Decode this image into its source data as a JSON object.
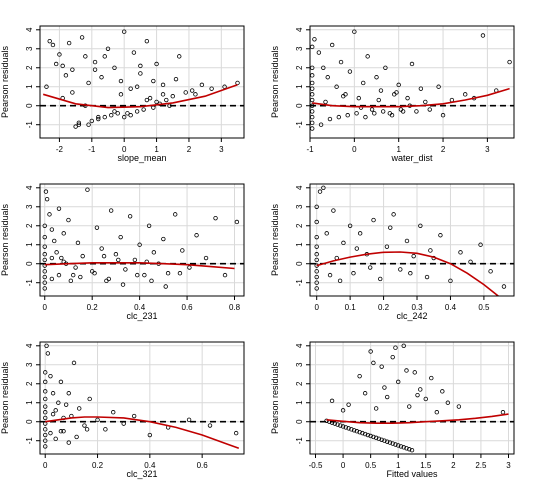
{
  "chart_data": [
    {
      "type": "scatter",
      "xlabel": "slope_mean",
      "ylabel": "Pearson residuals",
      "xlim": [
        -2.6,
        3.7
      ],
      "ylim": [
        -1.7,
        4.2
      ],
      "xticks": [
        -2,
        -1,
        0,
        1,
        2,
        3
      ],
      "yticks": [
        -1,
        0,
        1,
        2,
        3,
        4
      ],
      "grid": true,
      "reference_line": {
        "y": 0,
        "style": "dashed"
      },
      "smooth_curve": {
        "x": [
          -2.5,
          -1.5,
          -0.5,
          0.5,
          1.5,
          2.5,
          3.5
        ],
        "y": [
          0.6,
          0.1,
          -0.1,
          -0.05,
          0.15,
          0.5,
          1.1
        ]
      },
      "points": {
        "x": [
          -2.4,
          -2.2,
          -2.0,
          -1.9,
          -1.8,
          -1.7,
          -1.6,
          -1.5,
          -1.4,
          -1.3,
          -1.2,
          -1.1,
          -1.0,
          -0.9,
          -0.8,
          -0.7,
          -0.6,
          -0.5,
          -0.4,
          -0.3,
          -0.2,
          -0.1,
          0.0,
          0.1,
          0.2,
          0.3,
          0.4,
          0.5,
          0.6,
          0.7,
          0.8,
          0.9,
          1.0,
          1.1,
          1.2,
          1.3,
          1.5,
          1.7,
          1.9,
          2.1,
          2.4,
          2.7,
          3.1,
          3.5,
          -2.1,
          -1.6,
          -1.1,
          -0.6,
          -0.1,
          0.4,
          0.9,
          1.4,
          -1.9,
          -1.2,
          -0.8,
          -0.3,
          0.2,
          0.7,
          1.2,
          -2.3,
          -1.4,
          -0.9,
          0.0,
          0.5,
          1.0,
          1.6,
          2.2
        ],
        "y": [
          1.0,
          3.2,
          2.7,
          2.1,
          1.6,
          3.3,
          0.7,
          -1.1,
          -0.9,
          3.6,
          2.6,
          -1.0,
          -0.8,
          2.3,
          -0.7,
          1.5,
          -0.6,
          3.0,
          -0.5,
          2.0,
          -0.4,
          1.3,
          3.9,
          -0.4,
          0.9,
          2.8,
          -0.3,
          1.7,
          -0.2,
          3.4,
          0.4,
          -0.1,
          2.2,
          0.1,
          1.1,
          0.3,
          0.5,
          2.6,
          0.7,
          0.8,
          1.1,
          0.9,
          1.0,
          1.2,
          2.2,
          1.9,
          1.2,
          2.6,
          0.6,
          1.0,
          1.3,
          0.0,
          0.4,
          0.0,
          -0.6,
          -0.3,
          -0.5,
          0.3,
          0.6,
          3.4,
          -1.0,
          1.9,
          -0.6,
          2.1,
          0.2,
          1.4,
          0.6
        ]
      }
    },
    {
      "type": "scatter",
      "xlabel": "water_dist",
      "ylabel": "Pearson residuals",
      "xlim": [
        -1.0,
        3.6
      ],
      "ylim": [
        -1.7,
        4.2
      ],
      "xticks": [
        -1,
        0,
        1,
        2,
        3
      ],
      "yticks": [
        -1,
        0,
        1,
        2,
        3,
        4
      ],
      "grid": true,
      "reference_line": {
        "y": 0,
        "style": "dashed"
      },
      "smooth_curve": {
        "x": [
          -0.95,
          -0.5,
          0.0,
          0.5,
          1.0,
          1.5,
          2.0,
          2.5,
          3.0,
          3.5
        ],
        "y": [
          0.15,
          0.0,
          -0.05,
          -0.05,
          -0.05,
          0.0,
          0.1,
          0.3,
          0.55,
          0.9
        ]
      },
      "points": {
        "x": [
          -0.95,
          -0.95,
          -0.95,
          -0.95,
          -0.95,
          -0.95,
          -0.95,
          -0.95,
          -0.95,
          -0.95,
          -0.95,
          -0.95,
          -0.9,
          -0.8,
          -0.7,
          -0.6,
          -0.5,
          -0.4,
          -0.3,
          -0.2,
          -0.1,
          0.0,
          0.1,
          0.2,
          0.3,
          0.4,
          0.5,
          0.6,
          0.7,
          0.8,
          0.9,
          1.0,
          1.1,
          1.2,
          1.3,
          1.5,
          1.7,
          1.9,
          2.2,
          2.5,
          2.9,
          3.2,
          3.5,
          -0.75,
          -0.55,
          -0.35,
          -0.15,
          0.05,
          0.25,
          0.45,
          0.65,
          0.85,
          1.05,
          1.25,
          1.6,
          -0.65,
          -0.25,
          0.15,
          0.55,
          0.95,
          1.4,
          2.0,
          2.7
        ],
        "y": [
          -1.2,
          -0.9,
          -0.6,
          -0.3,
          0.0,
          0.3,
          0.6,
          0.9,
          1.2,
          1.6,
          2.0,
          3.1,
          3.5,
          2.8,
          2.0,
          1.5,
          3.2,
          1.0,
          2.3,
          0.6,
          1.8,
          3.9,
          0.4,
          1.2,
          2.6,
          -0.2,
          1.5,
          0.8,
          2.0,
          -0.4,
          0.6,
          1.1,
          -0.3,
          0.4,
          2.2,
          0.9,
          -0.2,
          1.0,
          0.3,
          0.6,
          3.7,
          0.8,
          2.3,
          -1.0,
          -0.7,
          -0.6,
          -0.5,
          -0.4,
          -0.6,
          -0.4,
          -0.3,
          -0.5,
          -0.2,
          0.0,
          0.2,
          0.2,
          0.5,
          -0.1,
          0.3,
          0.7,
          -0.3,
          -0.5,
          0.4
        ]
      }
    },
    {
      "type": "scatter",
      "xlabel": "clc_231",
      "ylabel": "Pearson residuals",
      "xlim": [
        -0.02,
        0.84
      ],
      "ylim": [
        -1.7,
        4.2
      ],
      "xticks": [
        0.0,
        0.2,
        0.4,
        0.6,
        0.8
      ],
      "yticks": [
        -1,
        0,
        1,
        2,
        3,
        4
      ],
      "grid": true,
      "reference_line": {
        "y": 0,
        "style": "dashed"
      },
      "smooth_curve": {
        "x": [
          0.0,
          0.1,
          0.2,
          0.3,
          0.4,
          0.5,
          0.6,
          0.7,
          0.8
        ],
        "y": [
          -0.05,
          0.0,
          0.05,
          0.05,
          0.05,
          0.0,
          -0.05,
          -0.15,
          -0.25
        ]
      },
      "points": {
        "x": [
          0.0,
          0.0,
          0.0,
          0.0,
          0.0,
          0.0,
          0.0,
          0.0,
          0.0,
          0.0,
          0.005,
          0.01,
          0.02,
          0.03,
          0.04,
          0.05,
          0.06,
          0.07,
          0.08,
          0.09,
          0.1,
          0.12,
          0.14,
          0.16,
          0.18,
          0.2,
          0.22,
          0.24,
          0.26,
          0.28,
          0.3,
          0.32,
          0.34,
          0.36,
          0.38,
          0.4,
          0.42,
          0.44,
          0.46,
          0.48,
          0.5,
          0.52,
          0.55,
          0.58,
          0.61,
          0.64,
          0.68,
          0.72,
          0.76,
          0.81,
          0.03,
          0.06,
          0.11,
          0.15,
          0.21,
          0.27,
          0.33,
          0.39,
          0.45,
          0.51,
          0.57,
          0.03,
          0.08,
          0.13,
          0.25,
          0.31,
          0.43
        ],
        "y": [
          -1.3,
          -1.0,
          -0.7,
          -0.4,
          -0.1,
          0.2,
          0.5,
          0.9,
          1.4,
          2.0,
          3.8,
          3.4,
          2.6,
          1.8,
          1.2,
          0.6,
          2.9,
          0.3,
          1.6,
          0.0,
          2.3,
          -0.6,
          1.1,
          0.4,
          3.9,
          -0.4,
          1.9,
          0.8,
          -0.9,
          2.8,
          0.5,
          1.4,
          -0.3,
          2.5,
          0.2,
          1.0,
          -0.6,
          2.0,
          0.6,
          0.0,
          1.3,
          -0.5,
          2.6,
          0.7,
          -0.2,
          1.5,
          0.3,
          2.4,
          -0.6,
          2.2,
          -0.8,
          -0.6,
          -0.9,
          -0.7,
          -0.5,
          -0.8,
          -1.1,
          -0.6,
          -0.9,
          -1.2,
          -0.5,
          0.3,
          0.1,
          -0.2,
          0.4,
          0.2,
          0.1
        ]
      }
    },
    {
      "type": "scatter",
      "xlabel": "clc_242",
      "ylabel": "Pearson residuals",
      "xlim": [
        -0.02,
        0.59
      ],
      "ylim": [
        -1.7,
        4.2
      ],
      "xticks": [
        0.0,
        0.1,
        0.2,
        0.3,
        0.4,
        0.5
      ],
      "yticks": [
        -1,
        0,
        1,
        2,
        3,
        4
      ],
      "grid": true,
      "reference_line": {
        "y": 0,
        "style": "dashed"
      },
      "smooth_curve": {
        "x": [
          0.0,
          0.05,
          0.1,
          0.15,
          0.2,
          0.25,
          0.3,
          0.35,
          0.4,
          0.45,
          0.5,
          0.55
        ],
        "y": [
          -0.1,
          0.15,
          0.35,
          0.5,
          0.6,
          0.62,
          0.55,
          0.35,
          0.0,
          -0.5,
          -1.1,
          -1.8
        ]
      },
      "points": {
        "x": [
          0.0,
          0.0,
          0.0,
          0.0,
          0.0,
          0.0,
          0.0,
          0.0,
          0.0,
          0.0,
          0.0,
          0.01,
          0.02,
          0.03,
          0.05,
          0.06,
          0.08,
          0.1,
          0.11,
          0.13,
          0.15,
          0.17,
          0.19,
          0.21,
          0.23,
          0.25,
          0.27,
          0.29,
          0.31,
          0.33,
          0.35,
          0.37,
          0.4,
          0.43,
          0.46,
          0.49,
          0.52,
          0.56,
          0.04,
          0.07,
          0.12,
          0.16,
          0.22,
          0.28,
          0.34
        ],
        "y": [
          -1.3,
          -1.0,
          -0.7,
          -0.4,
          -0.1,
          0.2,
          0.5,
          0.9,
          1.4,
          2.2,
          3.0,
          3.8,
          4.0,
          1.6,
          2.8,
          0.3,
          1.1,
          2.0,
          -0.5,
          1.6,
          0.5,
          2.3,
          -0.8,
          0.9,
          2.6,
          -0.3,
          1.2,
          0.4,
          2.0,
          -0.7,
          0.3,
          1.5,
          -0.9,
          0.6,
          0.1,
          1.0,
          -0.4,
          -1.2,
          -0.6,
          -0.9,
          0.8,
          -0.2,
          1.9,
          -0.5,
          0.7
        ]
      }
    },
    {
      "type": "scatter",
      "xlabel": "clc_321",
      "ylabel": "Pearson residuals",
      "xlim": [
        -0.02,
        0.76
      ],
      "ylim": [
        -1.7,
        4.2
      ],
      "xticks": [
        0.0,
        0.2,
        0.4,
        0.6
      ],
      "yticks": [
        -1,
        0,
        1,
        2,
        3,
        4
      ],
      "grid": true,
      "reference_line": {
        "y": 0,
        "style": "dashed"
      },
      "smooth_curve": {
        "x": [
          0.0,
          0.05,
          0.1,
          0.15,
          0.2,
          0.3,
          0.4,
          0.5,
          0.6,
          0.7,
          0.74
        ],
        "y": [
          0.0,
          0.1,
          0.2,
          0.25,
          0.25,
          0.2,
          0.0,
          -0.3,
          -0.7,
          -1.2,
          -1.4
        ]
      },
      "points": {
        "x": [
          0.0,
          0.0,
          0.0,
          0.0,
          0.0,
          0.0,
          0.0,
          0.0,
          0.0,
          0.0,
          0.0,
          0.0,
          0.005,
          0.01,
          0.02,
          0.03,
          0.04,
          0.05,
          0.06,
          0.07,
          0.08,
          0.09,
          0.1,
          0.11,
          0.13,
          0.15,
          0.17,
          0.2,
          0.23,
          0.26,
          0.3,
          0.34,
          0.4,
          0.47,
          0.55,
          0.63,
          0.73,
          0.02,
          0.04,
          0.06,
          0.09,
          0.12,
          0.16,
          0.03,
          0.07
        ],
        "y": [
          -1.3,
          -1.0,
          -0.7,
          -0.4,
          -0.1,
          0.2,
          0.5,
          0.8,
          1.2,
          1.6,
          2.1,
          2.6,
          4.0,
          3.6,
          2.4,
          1.5,
          0.6,
          1.0,
          2.1,
          -0.5,
          0.9,
          1.5,
          0.3,
          3.1,
          0.7,
          -0.2,
          1.2,
          0.1,
          -0.4,
          0.5,
          -0.1,
          0.3,
          -0.7,
          -0.3,
          0.1,
          -0.2,
          -0.6,
          -0.6,
          -0.9,
          -0.5,
          -1.1,
          -0.8,
          -0.4,
          0.4,
          0.2
        ]
      }
    },
    {
      "type": "scatter",
      "xlabel": "Fitted values",
      "ylabel": "Pearson residuals",
      "xlim": [
        -0.6,
        3.1
      ],
      "ylim": [
        -1.7,
        4.2
      ],
      "xticks": [
        -0.5,
        0.0,
        0.5,
        1.0,
        1.5,
        2.0,
        2.5,
        3.0
      ],
      "yticks": [
        -1,
        0,
        1,
        2,
        3,
        4
      ],
      "grid": true,
      "reference_line": {
        "y": 0,
        "style": "dashed"
      },
      "smooth_curve": {
        "x": [
          -0.3,
          0.0,
          0.3,
          0.6,
          0.9,
          1.2,
          1.5,
          1.8,
          2.1,
          2.4,
          2.7,
          3.0
        ],
        "y": [
          0.1,
          0.02,
          -0.05,
          -0.08,
          -0.08,
          -0.05,
          0.0,
          0.05,
          0.1,
          0.18,
          0.28,
          0.4
        ]
      },
      "points": {
        "x": [
          -0.3,
          -0.25,
          -0.2,
          -0.15,
          -0.1,
          -0.05,
          0.0,
          0.05,
          0.1,
          0.15,
          0.2,
          0.25,
          0.3,
          0.35,
          0.4,
          0.45,
          0.5,
          0.55,
          0.6,
          0.65,
          0.7,
          0.75,
          0.8,
          0.85,
          0.9,
          0.95,
          1.0,
          1.05,
          1.1,
          1.15,
          1.2,
          1.25,
          -0.2,
          0.0,
          0.1,
          0.3,
          0.4,
          0.5,
          0.6,
          0.7,
          0.8,
          0.9,
          1.0,
          1.1,
          1.2,
          1.3,
          1.4,
          1.5,
          1.6,
          1.7,
          1.8,
          1.9,
          2.1,
          2.9,
          0.55,
          0.75,
          0.95,
          1.15,
          1.35
        ],
        "y": [
          0.05,
          0.0,
          -0.05,
          -0.1,
          -0.15,
          -0.2,
          -0.25,
          -0.3,
          -0.35,
          -0.4,
          -0.45,
          -0.5,
          -0.55,
          -0.6,
          -0.65,
          -0.7,
          -0.75,
          -0.8,
          -0.85,
          -0.9,
          -0.95,
          -1.0,
          -1.05,
          -1.1,
          -1.15,
          -1.2,
          -1.25,
          -1.3,
          -1.35,
          -1.4,
          -1.45,
          -1.5,
          1.1,
          0.6,
          0.9,
          2.4,
          1.5,
          3.7,
          0.7,
          2.9,
          1.3,
          3.4,
          2.1,
          4.0,
          0.8,
          2.6,
          1.7,
          1.2,
          2.3,
          0.5,
          1.6,
          1.0,
          0.8,
          0.5,
          3.1,
          1.8,
          3.9,
          2.7,
          1.4
        ]
      }
    }
  ]
}
